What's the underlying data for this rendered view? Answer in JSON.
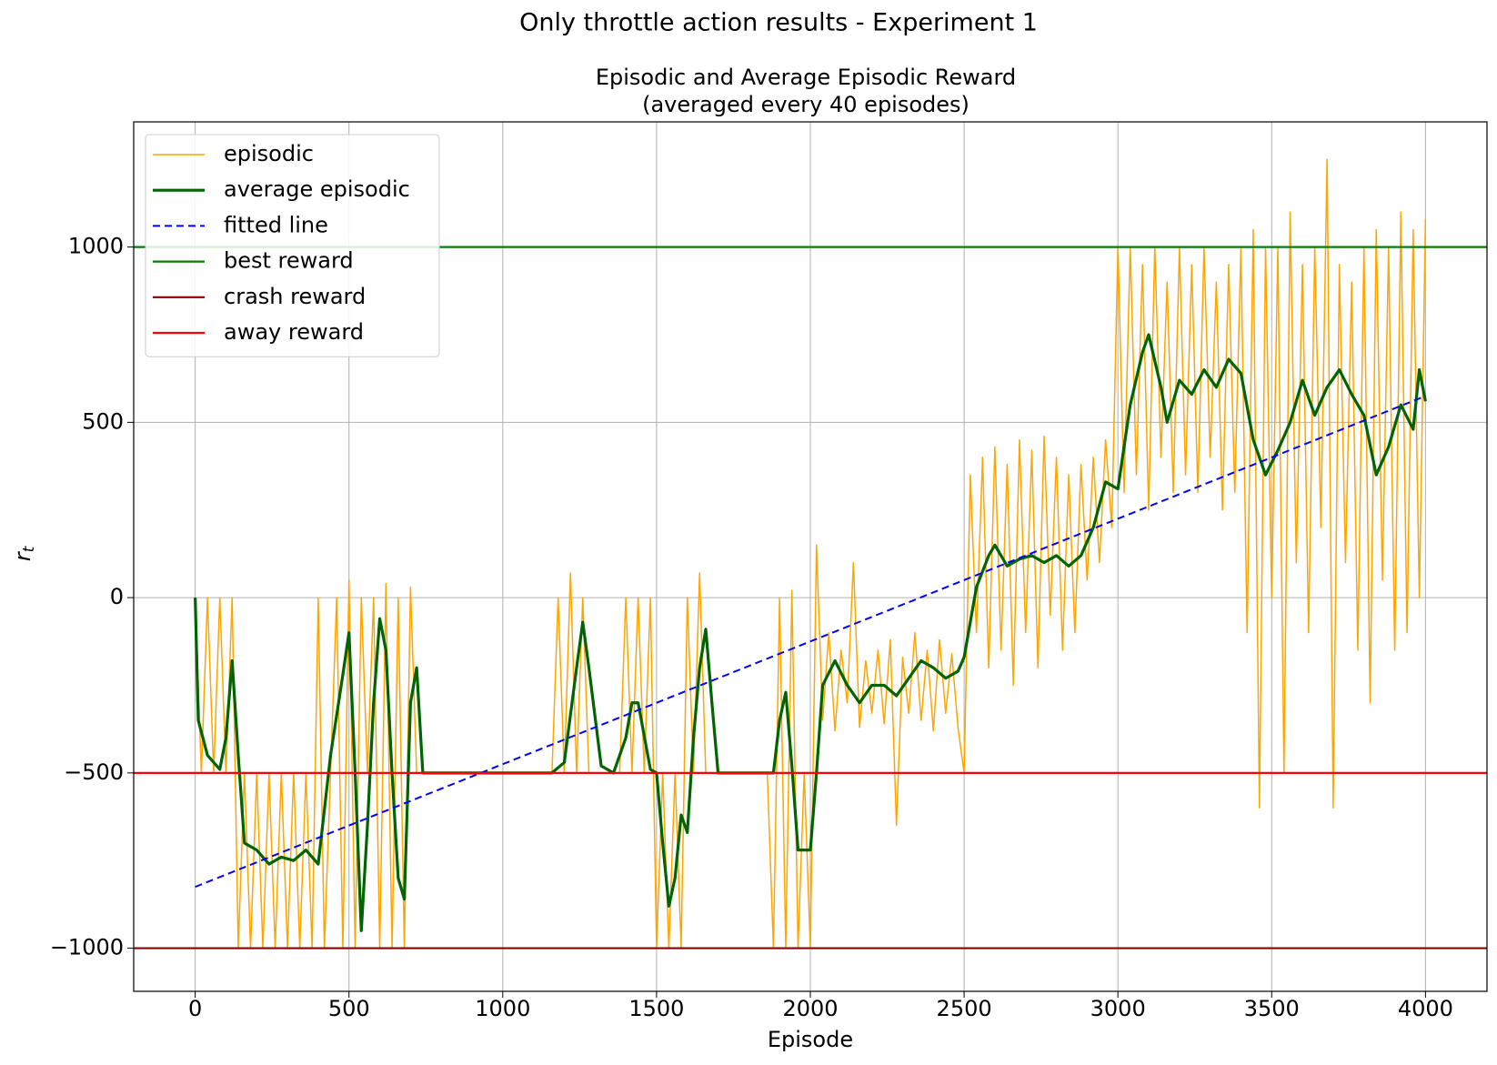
{
  "chart_data": {
    "type": "line",
    "suptitle": "Only throttle action results - Experiment 1",
    "title": [
      "Episodic and Average Episodic Reward",
      "(averaged every 40 episodes)"
    ],
    "xlabel": "Episode",
    "ylabel": [
      "r",
      "t"
    ],
    "xlim": [
      -200,
      4200
    ],
    "ylim": [
      -1123,
      1357
    ],
    "xticks": [
      0,
      500,
      1000,
      1500,
      2000,
      2500,
      3000,
      3500,
      4000
    ],
    "yticks": [
      {
        "value": -1000,
        "label": "−1000"
      },
      {
        "value": -500,
        "label": "−500"
      },
      0,
      500,
      1000
    ],
    "grid": true,
    "legend": "upper left",
    "series": [
      {
        "name": "episodic",
        "color": "#ffa500",
        "width": 1.5,
        "dash": false,
        "x": [
          0,
          20,
          40,
          60,
          80,
          100,
          120,
          140,
          160,
          180,
          200,
          220,
          240,
          260,
          280,
          300,
          320,
          340,
          360,
          380,
          400,
          420,
          440,
          460,
          480,
          500,
          520,
          540,
          560,
          580,
          600,
          620,
          640,
          660,
          680,
          700,
          720,
          740,
          760,
          780,
          800,
          820,
          840,
          860,
          880,
          900,
          920,
          940,
          960,
          980,
          1000,
          1020,
          1040,
          1060,
          1080,
          1100,
          1120,
          1140,
          1160,
          1180,
          1200,
          1220,
          1240,
          1260,
          1280,
          1300,
          1320,
          1340,
          1360,
          1380,
          1400,
          1420,
          1440,
          1460,
          1480,
          1500,
          1520,
          1540,
          1560,
          1580,
          1600,
          1620,
          1640,
          1660,
          1680,
          1700,
          1720,
          1740,
          1760,
          1780,
          1800,
          1820,
          1840,
          1860,
          1880,
          1900,
          1920,
          1940,
          1960,
          1980,
          2000,
          2020,
          2040,
          2060,
          2080,
          2100,
          2120,
          2140,
          2160,
          2180,
          2200,
          2220,
          2240,
          2260,
          2280,
          2300,
          2320,
          2340,
          2360,
          2380,
          2400,
          2420,
          2440,
          2460,
          2480,
          2500,
          2520,
          2540,
          2560,
          2580,
          2600,
          2620,
          2640,
          2660,
          2680,
          2700,
          2720,
          2740,
          2760,
          2780,
          2800,
          2820,
          2840,
          2860,
          2880,
          2900,
          2920,
          2940,
          2960,
          2980,
          3000,
          3020,
          3040,
          3060,
          3080,
          3100,
          3120,
          3140,
          3160,
          3180,
          3200,
          3220,
          3240,
          3260,
          3280,
          3300,
          3320,
          3340,
          3360,
          3380,
          3400,
          3420,
          3440,
          3460,
          3480,
          3500,
          3520,
          3540,
          3560,
          3580,
          3600,
          3620,
          3640,
          3660,
          3680,
          3700,
          3720,
          3740,
          3760,
          3780,
          3800,
          3820,
          3840,
          3860,
          3880,
          3900,
          3920,
          3940,
          3960,
          3980,
          4000
        ],
        "values": [
          0,
          -500,
          0,
          -500,
          0,
          -500,
          0,
          -1000,
          -500,
          -1000,
          -500,
          -1000,
          -500,
          -1000,
          -500,
          -1000,
          -500,
          -1000,
          -500,
          -1000,
          0,
          -1000,
          -500,
          0,
          -1000,
          50,
          -1000,
          0,
          -500,
          0,
          -1000,
          40,
          -1000,
          0,
          -1000,
          30,
          -500,
          -500,
          -500,
          -500,
          -500,
          -500,
          -500,
          -500,
          -500,
          -500,
          -500,
          -500,
          -500,
          -500,
          -500,
          -500,
          -500,
          -500,
          -500,
          -500,
          -500,
          -500,
          -500,
          0,
          -500,
          70,
          -500,
          0,
          -500,
          -500,
          -500,
          -500,
          -500,
          -500,
          0,
          -500,
          0,
          -500,
          0,
          -1000,
          -500,
          -1000,
          -500,
          -1000,
          0,
          -500,
          70,
          -500,
          -500,
          -500,
          -500,
          -500,
          -500,
          -500,
          -500,
          -500,
          -500,
          -500,
          -1000,
          0,
          -1000,
          20,
          -1000,
          -500,
          -1000,
          150,
          -350,
          -100,
          -380,
          -150,
          -300,
          100,
          -370,
          -180,
          -330,
          -150,
          -360,
          -120,
          -650,
          -170,
          -330,
          -100,
          -350,
          -150,
          -380,
          -120,
          -330,
          -160,
          -370,
          -500,
          350,
          -100,
          400,
          -200,
          430,
          -150,
          380,
          -250,
          450,
          -100,
          420,
          -200,
          460,
          -50,
          400,
          -150,
          350,
          -100,
          380,
          50,
          400,
          100,
          450,
          200,
          1000,
          300,
          1000,
          350,
          950,
          250,
          1000,
          400,
          900,
          300,
          1000,
          350,
          950,
          300,
          1000,
          400,
          900,
          250,
          950,
          300,
          1000,
          -100,
          1050,
          -600,
          1000,
          0,
          1000,
          -500,
          1100,
          100,
          950,
          -100,
          1000,
          200,
          1250,
          -600,
          950,
          100,
          900,
          -150,
          1000,
          -300,
          1050,
          50,
          1000,
          -150,
          1100,
          -100,
          1050,
          0,
          1080
        ]
      },
      {
        "name": "average episodic",
        "color": "#006400",
        "width": 3.2,
        "dash": false,
        "x": [
          0,
          10,
          40,
          80,
          100,
          120,
          140,
          160,
          200,
          240,
          280,
          320,
          360,
          400,
          440,
          480,
          500,
          520,
          540,
          560,
          580,
          600,
          620,
          640,
          660,
          680,
          700,
          720,
          740,
          1160,
          1200,
          1240,
          1260,
          1280,
          1320,
          1360,
          1400,
          1420,
          1440,
          1480,
          1500,
          1520,
          1540,
          1560,
          1580,
          1600,
          1620,
          1640,
          1660,
          1680,
          1700,
          1880,
          1900,
          1920,
          1940,
          1960,
          2000,
          2020,
          2040,
          2080,
          2120,
          2160,
          2200,
          2240,
          2280,
          2320,
          2360,
          2400,
          2440,
          2480,
          2500,
          2540,
          2580,
          2600,
          2640,
          2680,
          2720,
          2760,
          2800,
          2840,
          2880,
          2920,
          2960,
          3000,
          3040,
          3080,
          3100,
          3140,
          3160,
          3200,
          3240,
          3280,
          3320,
          3360,
          3400,
          3440,
          3480,
          3520,
          3560,
          3600,
          3640,
          3680,
          3720,
          3760,
          3800,
          3840,
          3880,
          3920,
          3960,
          3980,
          4000
        ],
        "values": [
          0,
          -350,
          -450,
          -490,
          -400,
          -180,
          -450,
          -700,
          -720,
          -760,
          -740,
          -750,
          -720,
          -760,
          -450,
          -220,
          -100,
          -500,
          -950,
          -650,
          -300,
          -60,
          -150,
          -500,
          -800,
          -860,
          -300,
          -200,
          -500,
          -500,
          -470,
          -200,
          -70,
          -200,
          -480,
          -500,
          -400,
          -300,
          -300,
          -490,
          -500,
          -700,
          -880,
          -800,
          -620,
          -670,
          -400,
          -200,
          -90,
          -300,
          -500,
          -500,
          -350,
          -270,
          -480,
          -720,
          -720,
          -500,
          -250,
          -180,
          -250,
          -300,
          -250,
          -250,
          -280,
          -230,
          -180,
          -200,
          -230,
          -210,
          -170,
          30,
          120,
          150,
          90,
          110,
          120,
          100,
          120,
          90,
          120,
          200,
          330,
          310,
          550,
          700,
          750,
          600,
          500,
          620,
          580,
          650,
          600,
          680,
          640,
          450,
          350,
          420,
          500,
          620,
          520,
          600,
          650,
          580,
          520,
          350,
          430,
          550,
          480,
          650,
          560
        ]
      },
      {
        "name": "fitted line",
        "color": "#0000ff",
        "width": 2,
        "dash": true,
        "x": [
          0,
          4000
        ],
        "values": [
          -825,
          575
        ]
      }
    ],
    "hlines": [
      {
        "name": "best reward",
        "color": "#008000",
        "value": 1000
      },
      {
        "name": "crash reward",
        "color": "#8b0000",
        "value": -1000
      },
      {
        "name": "away reward",
        "color": "#ff0000",
        "value": -500
      }
    ]
  }
}
